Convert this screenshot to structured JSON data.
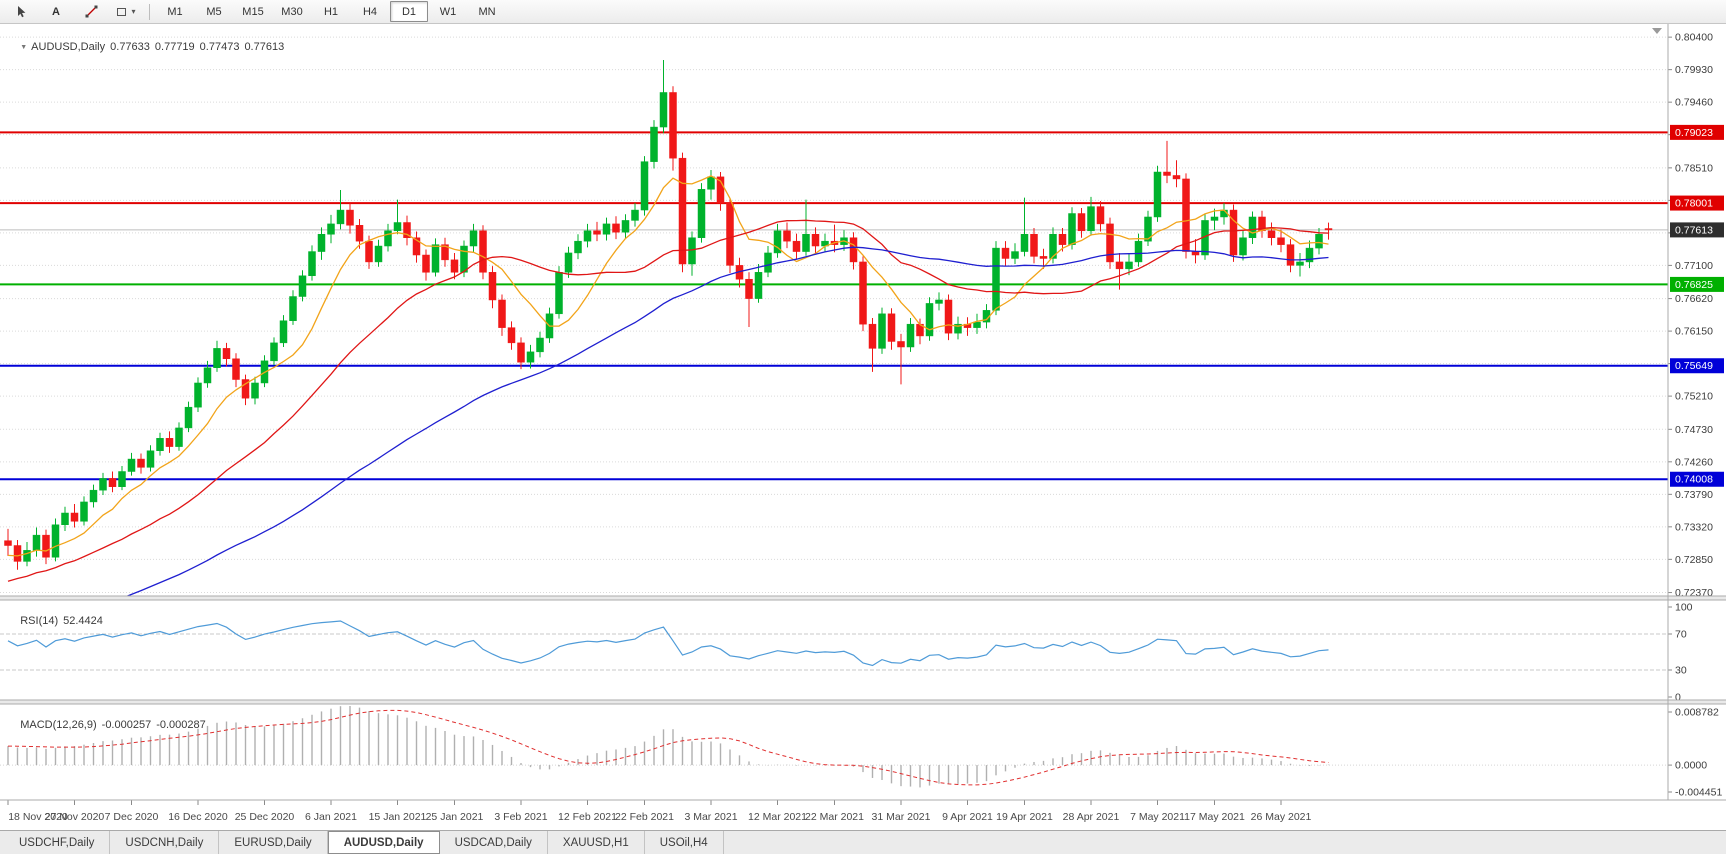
{
  "toolbar": {
    "tools": [
      {
        "name": "cursor-tool-button",
        "icon": "cursor"
      },
      {
        "name": "text-tool-button",
        "label": "A"
      },
      {
        "name": "trendline-tool-button",
        "icon": "trendline"
      },
      {
        "name": "shapes-tool-button",
        "icon": "shapes"
      }
    ],
    "timeframes": [
      "M1",
      "M5",
      "M15",
      "M30",
      "H1",
      "H4",
      "D1",
      "W1",
      "MN"
    ],
    "active_timeframe": "D1"
  },
  "chart_data": {
    "type": "candlestick",
    "title": {
      "symbol": "AUDUSD,Daily",
      "open": "0.77633",
      "high": "0.77719",
      "low": "0.77473",
      "close": "0.77613"
    },
    "price_axis_ticks": [
      "0.80400",
      "0.79930",
      "0.79460",
      "0.78990",
      "0.78510",
      "0.78040",
      "0.77570",
      "0.77100",
      "0.76620",
      "0.76150",
      "0.75680",
      "0.75210",
      "0.74730",
      "0.74260",
      "0.73790",
      "0.73320",
      "0.72850",
      "0.72370"
    ],
    "x_labels": [
      {
        "i": 0,
        "t": "18 Nov 2020"
      },
      {
        "i": 7,
        "t": "27 Nov 2020"
      },
      {
        "i": 13,
        "t": "7 Dec 2020"
      },
      {
        "i": 20,
        "t": "16 Dec 2020"
      },
      {
        "i": 27,
        "t": "25 Dec 2020"
      },
      {
        "i": 34,
        "t": "6 Jan 2021"
      },
      {
        "i": 41,
        "t": "15 Jan 2021"
      },
      {
        "i": 47,
        "t": "25 Jan 2021"
      },
      {
        "i": 54,
        "t": "3 Feb 2021"
      },
      {
        "i": 61,
        "t": "12 Feb 2021"
      },
      {
        "i": 67,
        "t": "22 Feb 2021"
      },
      {
        "i": 74,
        "t": "3 Mar 2021"
      },
      {
        "i": 81,
        "t": "12 Mar 2021"
      },
      {
        "i": 87,
        "t": "22 Mar 2021"
      },
      {
        "i": 94,
        "t": "31 Mar 2021"
      },
      {
        "i": 101,
        "t": "9 Apr 2021"
      },
      {
        "i": 107,
        "t": "19 Apr 2021"
      },
      {
        "i": 114,
        "t": "28 Apr 2021"
      },
      {
        "i": 121,
        "t": "7 May 2021"
      },
      {
        "i": 127,
        "t": "17 May 2021"
      },
      {
        "i": 134,
        "t": "26 May 2021"
      }
    ],
    "horizontal_lines": [
      {
        "price": 0.79023,
        "label": "0.79023",
        "color": "#e00000"
      },
      {
        "price": 0.78001,
        "label": "0.78001",
        "color": "#e00000"
      },
      {
        "price": 0.76825,
        "label": "0.76825",
        "color": "#00b000"
      },
      {
        "price": 0.75649,
        "label": "0.75649",
        "color": "#0000d8"
      },
      {
        "price": 0.74008,
        "label": "0.74008",
        "color": "#0000d8"
      }
    ],
    "current_price": {
      "value": 0.77613,
      "label": "0.77613",
      "line_color": "#bdbdbd",
      "tag_color": "#2e2e2e"
    },
    "candle_colors": {
      "up": "#00b22c",
      "down": "#f01818"
    },
    "ma_colors": {
      "fast": "#f2a41a",
      "mid": "#e01616",
      "slow": "#1f1fd0"
    },
    "candles": [
      [
        0.7312,
        0.7329,
        0.729,
        0.7305
      ],
      [
        0.7305,
        0.7313,
        0.727,
        0.7282
      ],
      [
        0.7282,
        0.731,
        0.7275,
        0.7298
      ],
      [
        0.7298,
        0.7331,
        0.7289,
        0.732
      ],
      [
        0.732,
        0.7328,
        0.7278,
        0.7288
      ],
      [
        0.7288,
        0.7344,
        0.7282,
        0.7335
      ],
      [
        0.7335,
        0.7361,
        0.7326,
        0.7352
      ],
      [
        0.7352,
        0.7365,
        0.7331,
        0.734
      ],
      [
        0.734,
        0.7376,
        0.7334,
        0.7368
      ],
      [
        0.7368,
        0.7393,
        0.736,
        0.7385
      ],
      [
        0.7385,
        0.741,
        0.7378,
        0.7402
      ],
      [
        0.7402,
        0.7412,
        0.7382,
        0.739
      ],
      [
        0.739,
        0.742,
        0.7385,
        0.7412
      ],
      [
        0.7412,
        0.7439,
        0.7406,
        0.743
      ],
      [
        0.743,
        0.7438,
        0.7409,
        0.7418
      ],
      [
        0.7418,
        0.745,
        0.7412,
        0.7442
      ],
      [
        0.7442,
        0.7468,
        0.7435,
        0.746
      ],
      [
        0.746,
        0.747,
        0.7439,
        0.7448
      ],
      [
        0.7448,
        0.7483,
        0.7442,
        0.7475
      ],
      [
        0.7475,
        0.7513,
        0.7469,
        0.7505
      ],
      [
        0.7505,
        0.7548,
        0.7498,
        0.754
      ],
      [
        0.754,
        0.7572,
        0.7533,
        0.7562
      ],
      [
        0.7562,
        0.7601,
        0.7556,
        0.759
      ],
      [
        0.759,
        0.7598,
        0.7564,
        0.7575
      ],
      [
        0.7575,
        0.7583,
        0.7534,
        0.7545
      ],
      [
        0.7545,
        0.7552,
        0.7508,
        0.7518
      ],
      [
        0.7518,
        0.7549,
        0.7509,
        0.754
      ],
      [
        0.754,
        0.758,
        0.7534,
        0.7572
      ],
      [
        0.7572,
        0.7606,
        0.7566,
        0.7598
      ],
      [
        0.7598,
        0.7638,
        0.7592,
        0.763
      ],
      [
        0.763,
        0.7674,
        0.7624,
        0.7665
      ],
      [
        0.7665,
        0.7703,
        0.7658,
        0.7695
      ],
      [
        0.7695,
        0.7739,
        0.7688,
        0.773
      ],
      [
        0.773,
        0.7765,
        0.7718,
        0.7755
      ],
      [
        0.7755,
        0.7783,
        0.7742,
        0.777
      ],
      [
        0.777,
        0.7819,
        0.7762,
        0.779
      ],
      [
        0.779,
        0.78,
        0.7756,
        0.7768
      ],
      [
        0.7768,
        0.7777,
        0.7734,
        0.7745
      ],
      [
        0.7745,
        0.7753,
        0.7705,
        0.7715
      ],
      [
        0.7715,
        0.7747,
        0.7708,
        0.7738
      ],
      [
        0.7738,
        0.777,
        0.773,
        0.776
      ],
      [
        0.776,
        0.7805,
        0.7755,
        0.7772
      ],
      [
        0.7772,
        0.7782,
        0.7739,
        0.775
      ],
      [
        0.775,
        0.7759,
        0.7714,
        0.7725
      ],
      [
        0.7725,
        0.7733,
        0.7688,
        0.77
      ],
      [
        0.77,
        0.7749,
        0.7694,
        0.774
      ],
      [
        0.774,
        0.775,
        0.7708,
        0.7718
      ],
      [
        0.7718,
        0.7728,
        0.769,
        0.77
      ],
      [
        0.77,
        0.7746,
        0.7693,
        0.7738
      ],
      [
        0.7738,
        0.777,
        0.7729,
        0.776
      ],
      [
        0.776,
        0.7768,
        0.769,
        0.77
      ],
      [
        0.77,
        0.7709,
        0.7648,
        0.766
      ],
      [
        0.766,
        0.7668,
        0.7608,
        0.762
      ],
      [
        0.762,
        0.7629,
        0.7588,
        0.7598
      ],
      [
        0.7598,
        0.7606,
        0.756,
        0.757
      ],
      [
        0.757,
        0.7595,
        0.7561,
        0.7585
      ],
      [
        0.7585,
        0.7614,
        0.7577,
        0.7605
      ],
      [
        0.7605,
        0.7649,
        0.7598,
        0.764
      ],
      [
        0.764,
        0.7709,
        0.7633,
        0.77
      ],
      [
        0.77,
        0.7737,
        0.7692,
        0.7728
      ],
      [
        0.7728,
        0.7755,
        0.7719,
        0.7745
      ],
      [
        0.7745,
        0.777,
        0.7736,
        0.776
      ],
      [
        0.776,
        0.7773,
        0.7745,
        0.7755
      ],
      [
        0.7755,
        0.7779,
        0.7746,
        0.777
      ],
      [
        0.777,
        0.7781,
        0.7748,
        0.7758
      ],
      [
        0.7758,
        0.7784,
        0.7749,
        0.7775
      ],
      [
        0.7775,
        0.78,
        0.7766,
        0.779
      ],
      [
        0.779,
        0.7868,
        0.7782,
        0.786
      ],
      [
        0.786,
        0.792,
        0.785,
        0.791
      ],
      [
        0.791,
        0.8007,
        0.7901,
        0.796
      ],
      [
        0.796,
        0.7969,
        0.7847,
        0.7865
      ],
      [
        0.7865,
        0.7873,
        0.77,
        0.7712
      ],
      [
        0.7712,
        0.7759,
        0.7695,
        0.775
      ],
      [
        0.775,
        0.7829,
        0.7743,
        0.782
      ],
      [
        0.782,
        0.7848,
        0.7805,
        0.7838
      ],
      [
        0.7838,
        0.7845,
        0.7789,
        0.78
      ],
      [
        0.78,
        0.7806,
        0.7699,
        0.771
      ],
      [
        0.771,
        0.7721,
        0.7678,
        0.769
      ],
      [
        0.769,
        0.77,
        0.7621,
        0.7662
      ],
      [
        0.7662,
        0.7712,
        0.7656,
        0.77
      ],
      [
        0.77,
        0.7738,
        0.7693,
        0.7728
      ],
      [
        0.7728,
        0.777,
        0.7721,
        0.776
      ],
      [
        0.776,
        0.7772,
        0.7735,
        0.7745
      ],
      [
        0.7745,
        0.7756,
        0.7719,
        0.773
      ],
      [
        0.773,
        0.7805,
        0.7724,
        0.7755
      ],
      [
        0.7755,
        0.7765,
        0.7727,
        0.7738
      ],
      [
        0.7738,
        0.7756,
        0.7729,
        0.7745
      ],
      [
        0.7745,
        0.7769,
        0.7729,
        0.774
      ],
      [
        0.774,
        0.7761,
        0.7731,
        0.775
      ],
      [
        0.775,
        0.7758,
        0.7704,
        0.7715
      ],
      [
        0.7715,
        0.7723,
        0.7615,
        0.7625
      ],
      [
        0.7625,
        0.7634,
        0.7556,
        0.759
      ],
      [
        0.759,
        0.7649,
        0.7582,
        0.764
      ],
      [
        0.764,
        0.7648,
        0.7588,
        0.76
      ],
      [
        0.76,
        0.7611,
        0.7538,
        0.7592
      ],
      [
        0.7592,
        0.7634,
        0.7585,
        0.7625
      ],
      [
        0.7625,
        0.7633,
        0.7596,
        0.7608
      ],
      [
        0.7608,
        0.7664,
        0.7601,
        0.7655
      ],
      [
        0.7655,
        0.7671,
        0.7645,
        0.766
      ],
      [
        0.766,
        0.7668,
        0.7602,
        0.7612
      ],
      [
        0.7612,
        0.7636,
        0.7603,
        0.7625
      ],
      [
        0.7625,
        0.7635,
        0.7608,
        0.762
      ],
      [
        0.762,
        0.764,
        0.7611,
        0.7628
      ],
      [
        0.7628,
        0.7654,
        0.7619,
        0.7645
      ],
      [
        0.7645,
        0.7745,
        0.7638,
        0.7735
      ],
      [
        0.7735,
        0.7745,
        0.7709,
        0.772
      ],
      [
        0.772,
        0.7742,
        0.7712,
        0.773
      ],
      [
        0.773,
        0.7808,
        0.7723,
        0.7755
      ],
      [
        0.7755,
        0.7764,
        0.7713,
        0.7723
      ],
      [
        0.7723,
        0.7734,
        0.7705,
        0.772
      ],
      [
        0.772,
        0.7765,
        0.7713,
        0.7755
      ],
      [
        0.7755,
        0.7764,
        0.773,
        0.774
      ],
      [
        0.774,
        0.7794,
        0.7733,
        0.7785
      ],
      [
        0.7785,
        0.7793,
        0.775,
        0.776
      ],
      [
        0.776,
        0.7809,
        0.7753,
        0.7795
      ],
      [
        0.7795,
        0.7803,
        0.7759,
        0.777
      ],
      [
        0.777,
        0.7779,
        0.7705,
        0.7715
      ],
      [
        0.7715,
        0.7728,
        0.7675,
        0.7705
      ],
      [
        0.7705,
        0.7728,
        0.7696,
        0.7715
      ],
      [
        0.7715,
        0.7756,
        0.7708,
        0.7745
      ],
      [
        0.7745,
        0.7789,
        0.7738,
        0.778
      ],
      [
        0.778,
        0.7854,
        0.7773,
        0.7845
      ],
      [
        0.7845,
        0.789,
        0.7829,
        0.784
      ],
      [
        0.784,
        0.7862,
        0.7823,
        0.7835
      ],
      [
        0.7835,
        0.7843,
        0.772,
        0.773
      ],
      [
        0.773,
        0.7748,
        0.7713,
        0.7725
      ],
      [
        0.7725,
        0.7784,
        0.7718,
        0.7775
      ],
      [
        0.7775,
        0.7792,
        0.7761,
        0.778
      ],
      [
        0.778,
        0.78,
        0.7769,
        0.779
      ],
      [
        0.779,
        0.7798,
        0.7715,
        0.7725
      ],
      [
        0.7725,
        0.7761,
        0.7717,
        0.775
      ],
      [
        0.775,
        0.7788,
        0.7741,
        0.778
      ],
      [
        0.778,
        0.7789,
        0.775,
        0.776
      ],
      [
        0.776,
        0.7772,
        0.7739,
        0.775
      ],
      [
        0.775,
        0.7762,
        0.7729,
        0.774
      ],
      [
        0.774,
        0.7748,
        0.77,
        0.771
      ],
      [
        0.771,
        0.7728,
        0.7694,
        0.7715
      ],
      [
        0.7715,
        0.7746,
        0.7706,
        0.7735
      ],
      [
        0.7735,
        0.7764,
        0.7726,
        0.7755
      ],
      [
        0.77633,
        0.77719,
        0.77473,
        0.77613
      ]
    ],
    "rsi_panel": {
      "label": "RSI(14)",
      "value": "52.4424",
      "axis_ticks": [
        "100",
        "70",
        "30",
        "0"
      ],
      "level_lines": [
        70,
        30
      ],
      "line_color": "#4f9bd8"
    },
    "macd_panel": {
      "label": "MACD(12,26,9)",
      "value_main": "-0.000257",
      "value_signal": "-0.000287",
      "axis_ticks": [
        "0.008782",
        "0.0000",
        "-0.004451"
      ],
      "histogram_color": "#b0b0b0",
      "signal_color": "#e03030"
    }
  },
  "bottom_tabs": {
    "tabs": [
      "USDCHF,Daily",
      "USDCNH,Daily",
      "EURUSD,Daily",
      "AUDUSD,Daily",
      "USDCAD,Daily",
      "XAUUSD,H1",
      "USOil,H4"
    ],
    "active": "AUDUSD,Daily"
  }
}
